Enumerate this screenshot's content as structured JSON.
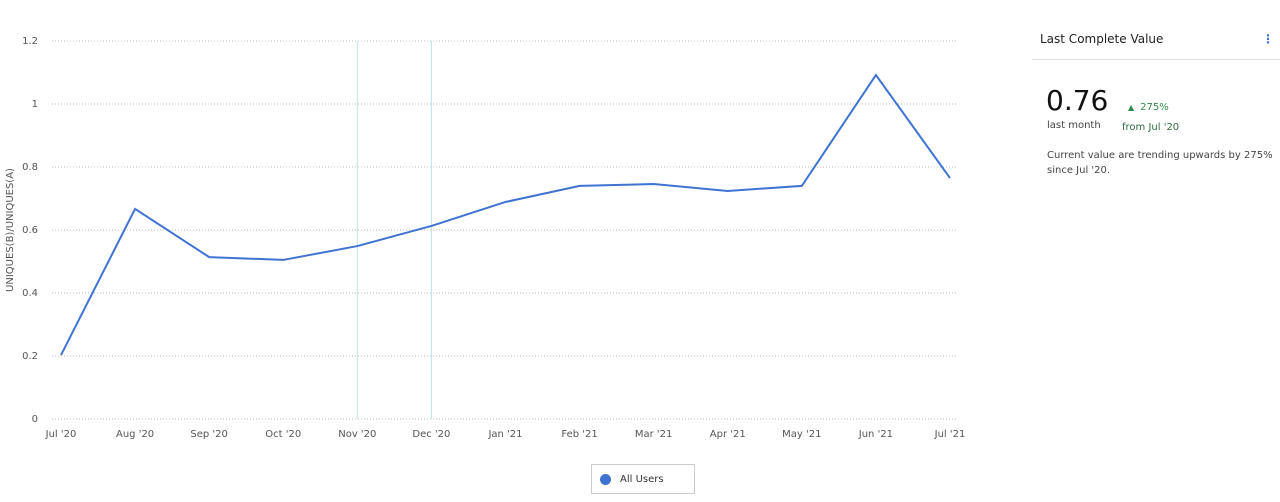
{
  "chart_data": {
    "type": "line",
    "ylabel": "UNIQUES(B)/UNIQUES(A)",
    "categories": [
      "Jul '20",
      "Aug '20",
      "Sep '20",
      "Oct '20",
      "Nov '20",
      "Dec '20",
      "Jan '21",
      "Feb '21",
      "Mar '21",
      "Apr '21",
      "May '21",
      "Jun '21",
      "Jul '21"
    ],
    "series": [
      {
        "name": "All Users",
        "color": "#3f73d2",
        "values": [
          0.203,
          0.667,
          0.514,
          0.505,
          0.549,
          0.613,
          0.689,
          0.74,
          0.746,
          0.724,
          0.74,
          1.092,
          0.765
        ]
      }
    ],
    "ylim": [
      0,
      1.2
    ],
    "yticks": [
      0,
      0.2,
      0.4,
      0.6,
      0.8,
      1,
      1.2
    ],
    "grid": true,
    "highlight_indices": [
      4,
      5
    ]
  },
  "panel": {
    "title": "Last Complete Value",
    "value": "0.76",
    "value_caption": "last month",
    "change": "275%",
    "change_caption": "from Jul '20",
    "description": "Current value are trending upwards by 275% since Jul '20."
  }
}
